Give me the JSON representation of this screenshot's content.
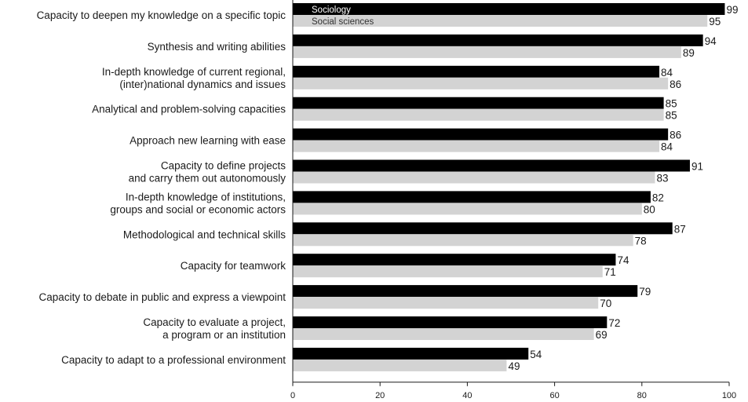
{
  "chart_data": {
    "type": "bar",
    "orientation": "horizontal",
    "categories": [
      [
        "Capacity to deepen my knowledge on a specific topic"
      ],
      [
        "Synthesis and writing abilities"
      ],
      [
        "In-depth knowledge of current regional,",
        "(inter)national dynamics and issues"
      ],
      [
        "Analytical and problem-solving capacities"
      ],
      [
        "Approach new learning with ease"
      ],
      [
        "Capacity to define projects",
        "and carry them out autonomously"
      ],
      [
        "In-depth knowledge of institutions,",
        "groups and social or economic actors"
      ],
      [
        "Methodological and technical skills"
      ],
      [
        "Capacity for teamwork"
      ],
      [
        "Capacity to debate in public and express a viewpoint"
      ],
      [
        "Capacity to evaluate a project,",
        "a program or an institution"
      ],
      [
        "Capacity to adapt to a professional environment"
      ]
    ],
    "series": [
      {
        "name": "Sociology",
        "color": "#000000",
        "label_color": "#ffffff",
        "values": [
          99,
          94,
          84,
          85,
          86,
          91,
          82,
          87,
          74,
          79,
          72,
          54
        ]
      },
      {
        "name": "Social sciences",
        "color": "#d3d3d3",
        "label_color": "#333333",
        "values": [
          95,
          89,
          86,
          85,
          84,
          83,
          80,
          78,
          71,
          70,
          69,
          49
        ]
      }
    ],
    "xlim": [
      0,
      100
    ],
    "xticks": [
      "0",
      "20",
      "40",
      "60",
      "80",
      "100"
    ],
    "legend": "top-left inside bars",
    "grid": false
  }
}
